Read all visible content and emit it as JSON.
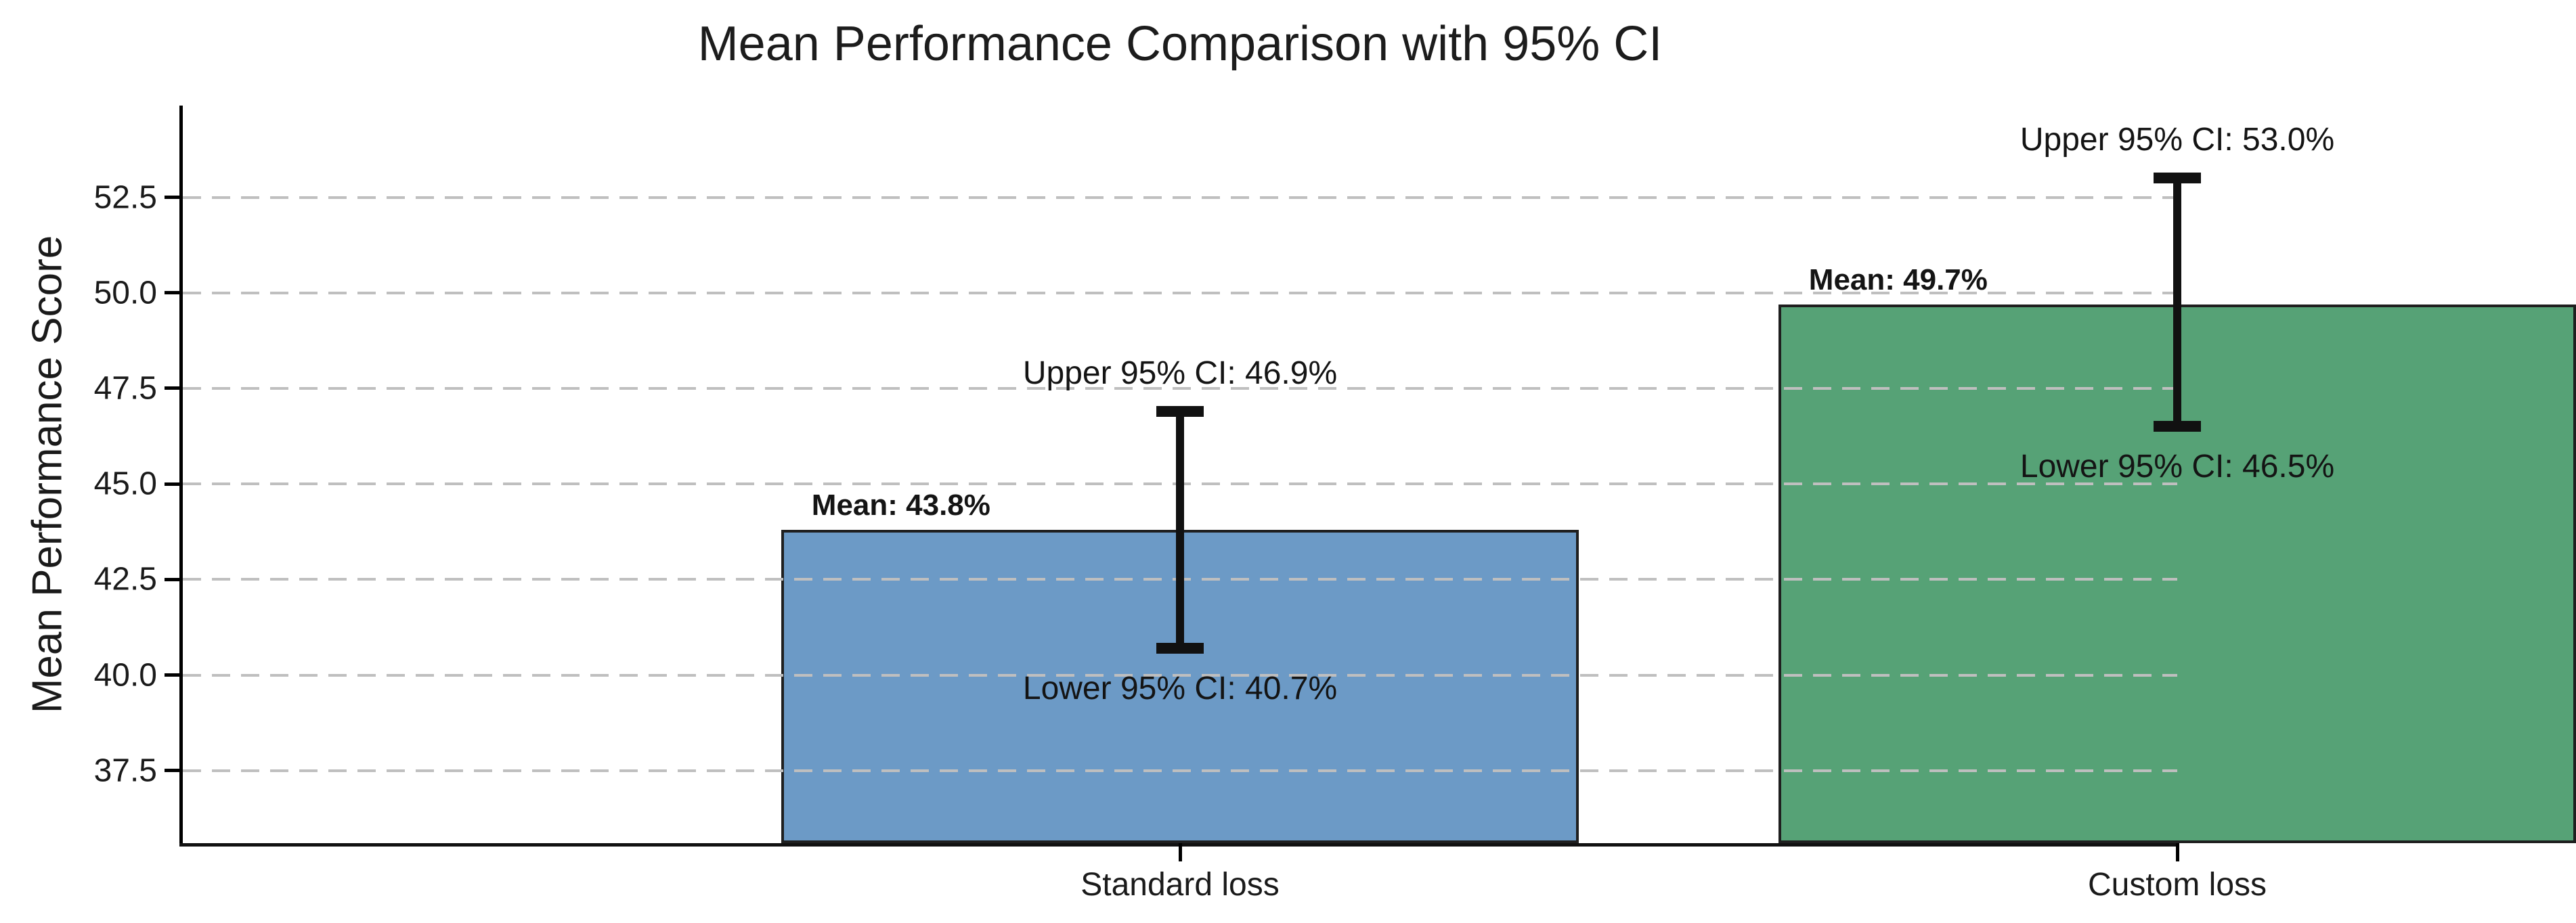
{
  "chart_data": {
    "type": "bar",
    "title": "Mean Performance Comparison with 95% CI",
    "ylabel": "Mean Performance Score",
    "xlabel": "",
    "categories": [
      "Standard loss",
      "Custom loss"
    ],
    "series": [
      {
        "name": "Mean Performance Score",
        "values": [
          43.8,
          49.7
        ],
        "ci_lower": [
          40.7,
          46.5
        ],
        "ci_upper": [
          46.9,
          53.0
        ]
      }
    ],
    "bar_labels": {
      "mean": [
        "Mean: 43.8%",
        "Mean: 49.7%"
      ],
      "upper": [
        "Upper 95% CI: 46.9%",
        "Upper 95% CI: 53.0%"
      ],
      "lower": [
        "Lower 95% CI: 40.7%",
        "Lower 95% CI: 46.5%"
      ]
    },
    "ytick_values": [
      37.5,
      40.0,
      42.5,
      45.0,
      47.5,
      50.0,
      52.5
    ],
    "ytick_labels": [
      "37.5",
      "40.0",
      "42.5",
      "45.0",
      "47.5",
      "50.0",
      "52.5"
    ],
    "ylim": [
      35.6,
      54.9
    ],
    "xlim": [
      -0.5,
      1.5
    ],
    "bar_width": 0.8,
    "grid": "horizontal-dashed",
    "legend": "none",
    "colors": {
      "bars": [
        "#6c9ac6",
        "#56a276"
      ],
      "bar_edge": "#1f1f1f",
      "error_bar": "#111111",
      "gridline": "#bfbfbf",
      "axis": "#000000",
      "text": "#1a1a1a"
    }
  }
}
